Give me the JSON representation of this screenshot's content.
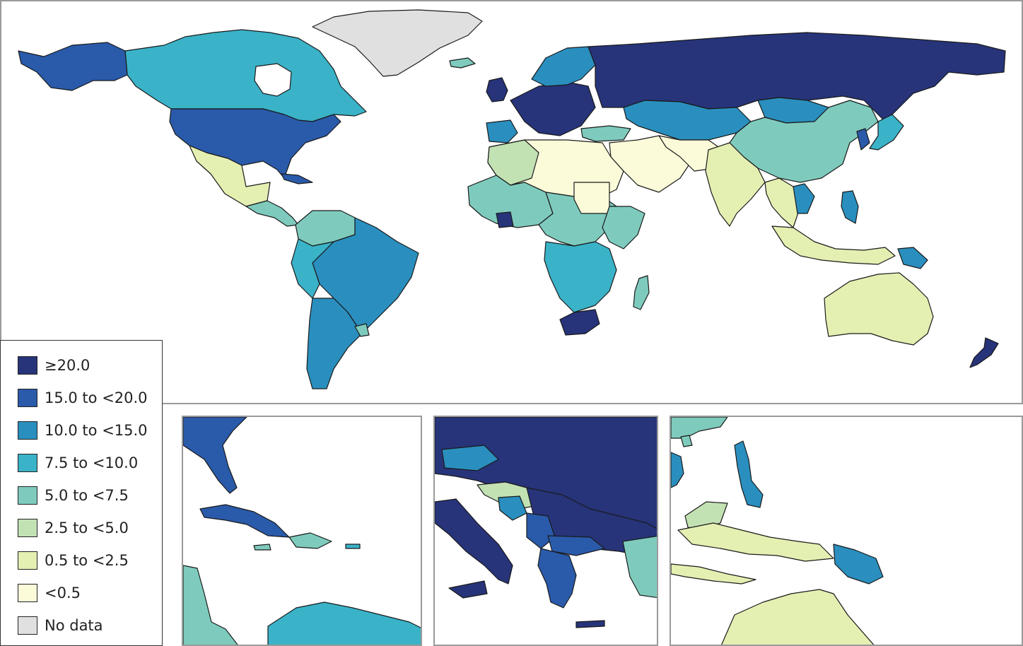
{
  "colors": {
    "c20": "#27347a",
    "c15": "#2a5aaa",
    "c10": "#2a8fbe",
    "c7": "#3ab2c8",
    "c5": "#7ecbbd",
    "c2": "#c3e2b4",
    "c05": "#e4efb2",
    "c0": "#fbfbd9",
    "nodata": "#e0e0e0"
  },
  "legend": [
    {
      "label": "≥20.0",
      "color": "#27347a"
    },
    {
      "label": "15.0 to <20.0",
      "color": "#2a5aaa"
    },
    {
      "label": "10.0 to <15.0",
      "color": "#2a8fbe"
    },
    {
      "label": "7.5 to <10.0",
      "color": "#3ab2c8"
    },
    {
      "label": "5.0 to <7.5",
      "color": "#7ecbbd"
    },
    {
      "label": "2.5 to <5.0",
      "color": "#c3e2b4"
    },
    {
      "label": "0.5 to <2.5",
      "color": "#e4efb2"
    },
    {
      "label": "<0.5",
      "color": "#fbfbd9"
    },
    {
      "label": "No data",
      "color": "#e0e0e0"
    }
  ]
}
